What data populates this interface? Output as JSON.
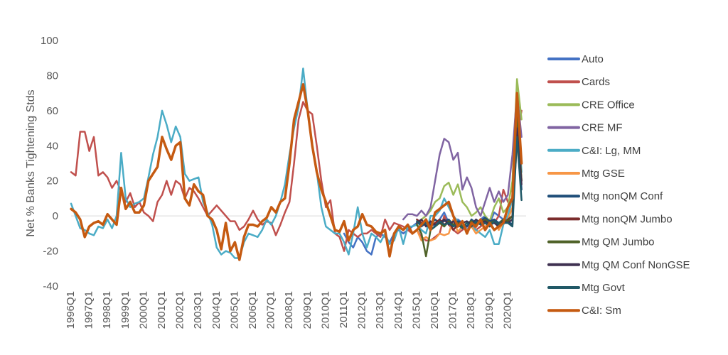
{
  "chart_data": {
    "type": "line",
    "title": "",
    "xlabel": "",
    "ylabel": "Net % Banks Tightening Stds",
    "ylim": [
      -40,
      100
    ],
    "yticks": [
      -40,
      -20,
      0,
      20,
      40,
      60,
      80,
      100
    ],
    "xlim": [
      1996.0,
      2021.0
    ],
    "xticks": [
      "1996Q1",
      "1997Q1",
      "1998Q1",
      "1999Q1",
      "2000Q1",
      "2001Q1",
      "2002Q1",
      "2003Q1",
      "2004Q1",
      "2005Q1",
      "2006Q1",
      "2007Q1",
      "2008Q1",
      "2009Q1",
      "2010Q1",
      "2011Q1",
      "2012Q1",
      "2013Q1",
      "2014Q1",
      "2015Q1",
      "2016Q1",
      "2017Q1",
      "2018Q1",
      "2019Q1",
      "2020Q1"
    ],
    "grid": false,
    "legend_position": "right",
    "series": [
      {
        "name": "Auto",
        "color": "#4472C4",
        "width": 2.5,
        "x": [
          2011.0,
          2011.25,
          2011.5,
          2011.75,
          2012.0,
          2012.25,
          2012.5,
          2012.75,
          2013.0,
          2013.25,
          2013.5,
          2013.75,
          2014.0,
          2014.25,
          2014.5,
          2014.75,
          2015.0,
          2015.25,
          2015.5,
          2015.75,
          2016.0,
          2016.25,
          2016.5,
          2016.75,
          2017.0,
          2017.25,
          2017.5,
          2017.75,
          2018.0,
          2018.25,
          2018.5,
          2018.75,
          2019.0,
          2019.25,
          2019.5,
          2019.75,
          2020.0,
          2020.25,
          2020.5,
          2020.75
        ],
        "y": [
          -10,
          -15,
          -18,
          -12,
          -15,
          -20,
          -22,
          -12,
          -10,
          -12,
          -15,
          -10,
          -8,
          -10,
          -8,
          -6,
          -4,
          -2,
          -6,
          -4,
          -6,
          -2,
          2,
          -4,
          -6,
          -2,
          -4,
          -8,
          -4,
          -6,
          -2,
          0,
          -4,
          2,
          0,
          -2,
          0,
          10,
          50,
          30
        ]
      },
      {
        "name": "Cards",
        "color": "#C0504D",
        "width": 2.5,
        "x": [
          1996.0,
          1996.25,
          1996.5,
          1996.75,
          1997.0,
          1997.25,
          1997.5,
          1997.75,
          1998.0,
          1998.25,
          1998.5,
          1998.75,
          1999.0,
          1999.25,
          1999.5,
          1999.75,
          2000.0,
          2000.25,
          2000.5,
          2000.75,
          2001.0,
          2001.25,
          2001.5,
          2001.75,
          2002.0,
          2002.25,
          2002.5,
          2002.75,
          2003.0,
          2003.25,
          2003.5,
          2003.75,
          2004.0,
          2004.25,
          2004.5,
          2004.75,
          2005.0,
          2005.25,
          2005.5,
          2005.75,
          2006.0,
          2006.25,
          2006.5,
          2006.75,
          2007.0,
          2007.25,
          2007.5,
          2007.75,
          2008.0,
          2008.25,
          2008.5,
          2008.75,
          2009.0,
          2009.25,
          2009.5,
          2009.75,
          2010.0,
          2010.25,
          2010.5,
          2010.75,
          2011.0,
          2011.25,
          2011.5,
          2011.75,
          2012.0,
          2012.25,
          2012.5,
          2012.75,
          2013.0,
          2013.25,
          2013.5,
          2013.75,
          2014.0,
          2014.25,
          2014.5,
          2014.75,
          2015.0,
          2015.25,
          2015.5,
          2015.75,
          2016.0,
          2016.25,
          2016.5,
          2016.75,
          2017.0,
          2017.25,
          2017.5,
          2017.75,
          2018.0,
          2018.25,
          2018.5,
          2018.75,
          2019.0,
          2019.25,
          2019.5,
          2019.75,
          2020.0,
          2020.25,
          2020.5,
          2020.75
        ],
        "y": [
          25,
          23,
          48,
          48,
          37,
          45,
          23,
          25,
          22,
          16,
          20,
          14,
          8,
          13,
          5,
          8,
          2,
          0,
          -3,
          8,
          12,
          20,
          12,
          20,
          18,
          10,
          16,
          14,
          10,
          5,
          0,
          3,
          6,
          3,
          0,
          -3,
          -3,
          -8,
          -6,
          -2,
          3,
          -2,
          -5,
          -3,
          -4,
          -11,
          -5,
          2,
          8,
          30,
          55,
          65,
          60,
          58,
          40,
          20,
          5,
          9,
          -10,
          -12,
          -20,
          -8,
          -10,
          -12,
          -10,
          -10,
          -8,
          -10,
          -12,
          -2,
          -8,
          -4,
          -5,
          -6,
          -8,
          -10,
          -8,
          -12,
          -14,
          -14,
          -12,
          -10,
          0,
          -5,
          -8,
          -10,
          -8,
          -6,
          -4,
          -8,
          -6,
          -4,
          -2,
          -4,
          0,
          15,
          8,
          10,
          45,
          60
        ]
      },
      {
        "name": "CRE Office",
        "color": "#9BBB59",
        "width": 2.5,
        "x": [
          2015.0,
          2015.25,
          2015.5,
          2015.75,
          2016.0,
          2016.25,
          2016.5,
          2016.75,
          2017.0,
          2017.25,
          2017.5,
          2017.75,
          2018.0,
          2018.25,
          2018.5,
          2018.75,
          2019.0,
          2019.25,
          2019.5,
          2019.75,
          2020.0,
          2020.25,
          2020.5,
          2020.75
        ],
        "y": [
          -5,
          -2,
          0,
          3,
          8,
          10,
          17,
          19,
          12,
          18,
          8,
          5,
          0,
          2,
          5,
          0,
          -3,
          5,
          10,
          2,
          5,
          20,
          78,
          55
        ]
      },
      {
        "name": "CRE MF",
        "color": "#8064A2",
        "width": 2.5,
        "x": [
          2014.25,
          2014.5,
          2014.75,
          2015.0,
          2015.25,
          2015.5,
          2015.75,
          2016.0,
          2016.25,
          2016.5,
          2016.75,
          2017.0,
          2017.25,
          2017.5,
          2017.75,
          2018.0,
          2018.25,
          2018.5,
          2018.75,
          2019.0,
          2019.25,
          2019.5,
          2019.75,
          2020.0,
          2020.25,
          2020.5,
          2020.75
        ],
        "y": [
          -2,
          1,
          1,
          0,
          3,
          0,
          5,
          20,
          35,
          44,
          42,
          32,
          36,
          15,
          22,
          16,
          5,
          0,
          8,
          16,
          8,
          14,
          8,
          12,
          35,
          70,
          45
        ]
      },
      {
        "name": "C&I: Lg, MM",
        "color": "#4BACC6",
        "width": 2.5,
        "x": [
          1996.0,
          1996.25,
          1996.5,
          1996.75,
          1997.0,
          1997.25,
          1997.5,
          1997.75,
          1998.0,
          1998.25,
          1998.5,
          1998.75,
          1999.0,
          1999.25,
          1999.5,
          1999.75,
          2000.0,
          2000.25,
          2000.5,
          2000.75,
          2001.0,
          2001.25,
          2001.5,
          2001.75,
          2002.0,
          2002.25,
          2002.5,
          2002.75,
          2003.0,
          2003.25,
          2003.5,
          2003.75,
          2004.0,
          2004.25,
          2004.5,
          2004.75,
          2005.0,
          2005.25,
          2005.5,
          2005.75,
          2006.0,
          2006.25,
          2006.5,
          2006.75,
          2007.0,
          2007.25,
          2007.5,
          2007.75,
          2008.0,
          2008.25,
          2008.5,
          2008.75,
          2009.0,
          2009.25,
          2009.5,
          2009.75,
          2010.0,
          2010.25,
          2010.5,
          2010.75,
          2011.0,
          2011.25,
          2011.5,
          2011.75,
          2012.0,
          2012.25,
          2012.5,
          2012.75,
          2013.0,
          2013.25,
          2013.5,
          2013.75,
          2014.0,
          2014.25,
          2014.5,
          2014.75,
          2015.0,
          2015.25,
          2015.5,
          2015.75,
          2016.0,
          2016.25,
          2016.5,
          2016.75,
          2017.0,
          2017.25,
          2017.5,
          2017.75,
          2018.0,
          2018.25,
          2018.5,
          2018.75,
          2019.0,
          2019.25,
          2019.5,
          2019.75,
          2020.0,
          2020.25,
          2020.5,
          2020.75
        ],
        "y": [
          7,
          0,
          -7,
          -8,
          -10,
          -11,
          -6,
          -7,
          -2,
          -7,
          0,
          36,
          10,
          5,
          7,
          8,
          10,
          22,
          35,
          45,
          60,
          52,
          42,
          51,
          45,
          24,
          20,
          21,
          22,
          8,
          2,
          -5,
          -18,
          -22,
          -20,
          -21,
          -24,
          -24,
          -15,
          -10,
          -11,
          -12,
          -8,
          -2,
          -5,
          0,
          8,
          18,
          35,
          50,
          62,
          84,
          60,
          40,
          25,
          5,
          -6,
          -8,
          -10,
          -10,
          -15,
          -22,
          -10,
          5,
          -10,
          -18,
          -10,
          -12,
          -15,
          -10,
          -16,
          -14,
          -6,
          -16,
          -6,
          -6,
          -5,
          -8,
          -10,
          0,
          0,
          3,
          10,
          5,
          0,
          -3,
          -5,
          -8,
          -6,
          -8,
          -10,
          -12,
          -8,
          -16,
          -16,
          -5,
          0,
          10,
          70,
          25
        ]
      },
      {
        "name": "Mtg GSE",
        "color": "#F79646",
        "width": 2.5,
        "x": [
          2015.0,
          2015.25,
          2015.5,
          2015.75,
          2016.0,
          2016.25,
          2016.5,
          2016.75,
          2017.0,
          2017.25,
          2017.5,
          2017.75,
          2018.0,
          2018.25,
          2018.5,
          2018.75,
          2019.0,
          2019.25,
          2019.5,
          2019.75,
          2020.0,
          2020.25,
          2020.5,
          2020.75
        ],
        "y": [
          -8,
          -14,
          -12,
          -14,
          -13,
          -10,
          -11,
          -10,
          -2,
          -9,
          -6,
          -8,
          -6,
          -10,
          -8,
          -6,
          -4,
          -2,
          -8,
          -4,
          -2,
          5,
          40,
          30
        ]
      },
      {
        "name": "Mtg nonQM Conf",
        "color": "#1F4E79",
        "width": 2.5,
        "x": [
          2015.0,
          2015.25,
          2015.5,
          2015.75,
          2016.0,
          2016.25,
          2016.5,
          2016.75,
          2017.0,
          2017.25,
          2017.5,
          2017.75,
          2018.0,
          2018.25,
          2018.5,
          2018.75,
          2019.0,
          2019.25,
          2019.5,
          2019.75,
          2020.0,
          2020.25,
          2020.5,
          2020.75
        ],
        "y": [
          -3,
          -6,
          -4,
          -5,
          -2,
          -4,
          -3,
          -2,
          -5,
          -3,
          -4,
          -6,
          -2,
          -4,
          -3,
          -1,
          -3,
          -2,
          -4,
          -2,
          -3,
          -5,
          55,
          15
        ]
      },
      {
        "name": "Mtg nonQM Jumbo",
        "color": "#7B2C2C",
        "width": 2.5,
        "x": [
          2015.0,
          2015.25,
          2015.5,
          2015.75,
          2016.0,
          2016.25,
          2016.5,
          2016.75,
          2017.0,
          2017.25,
          2017.5,
          2017.75,
          2018.0,
          2018.25,
          2018.5,
          2018.75,
          2019.0,
          2019.25,
          2019.5,
          2019.75,
          2020.0,
          2020.25,
          2020.5,
          2020.75
        ],
        "y": [
          -2,
          -4,
          -3,
          -6,
          -4,
          -2,
          -5,
          -3,
          -8,
          -5,
          -3,
          -10,
          -4,
          -6,
          -2,
          -4,
          -6,
          -3,
          -5,
          -4,
          -2,
          0,
          60,
          20
        ]
      },
      {
        "name": "Mtg QM Jumbo",
        "color": "#4F6228",
        "width": 2.5,
        "x": [
          2015.0,
          2015.25,
          2015.5,
          2015.75,
          2016.0,
          2016.25,
          2016.5,
          2016.75,
          2017.0,
          2017.25,
          2017.5,
          2017.75,
          2018.0,
          2018.25,
          2018.5,
          2018.75,
          2019.0,
          2019.25,
          2019.5,
          2019.75,
          2020.0,
          2020.25,
          2020.5,
          2020.75
        ],
        "y": [
          -5,
          -10,
          -23,
          -8,
          -6,
          -4,
          -6,
          -3,
          -5,
          -4,
          -6,
          -4,
          -3,
          -5,
          -4,
          -2,
          -4,
          -3,
          -5,
          -2,
          -3,
          0,
          55,
          20
        ]
      },
      {
        "name": "Mtg QM Conf NonGSE",
        "color": "#3F3151",
        "width": 2.5,
        "x": [
          2015.0,
          2015.25,
          2015.5,
          2015.75,
          2016.0,
          2016.25,
          2016.5,
          2016.75,
          2017.0,
          2017.25,
          2017.5,
          2017.75,
          2018.0,
          2018.25,
          2018.5,
          2018.75,
          2019.0,
          2019.25,
          2019.5,
          2019.75,
          2020.0,
          2020.25,
          2020.5,
          2020.75
        ],
        "y": [
          -4,
          -2,
          -6,
          -3,
          -5,
          -4,
          -2,
          -5,
          -3,
          -6,
          -4,
          -3,
          -5,
          -2,
          -4,
          -3,
          -5,
          -4,
          -6,
          -3,
          -4,
          -2,
          50,
          18
        ]
      },
      {
        "name": "Mtg Govt",
        "color": "#215967",
        "width": 2.5,
        "x": [
          2015.0,
          2015.25,
          2015.5,
          2015.75,
          2016.0,
          2016.25,
          2016.5,
          2016.75,
          2017.0,
          2017.25,
          2017.5,
          2017.75,
          2018.0,
          2018.25,
          2018.5,
          2018.75,
          2019.0,
          2019.25,
          2019.5,
          2019.75,
          2020.0,
          2020.25,
          2020.5,
          2020.75
        ],
        "y": [
          -3,
          -5,
          -4,
          -8,
          -6,
          -3,
          -5,
          -4,
          -6,
          -5,
          -7,
          -4,
          -6,
          -3,
          -5,
          -4,
          -6,
          -3,
          -5,
          -4,
          -4,
          -6,
          45,
          9
        ]
      },
      {
        "name": "C&I: Sm",
        "color": "#C55A11",
        "width": 3.5,
        "x": [
          1996.0,
          1996.25,
          1996.5,
          1996.75,
          1997.0,
          1997.25,
          1997.5,
          1997.75,
          1998.0,
          1998.25,
          1998.5,
          1998.75,
          1999.0,
          1999.25,
          1999.5,
          1999.75,
          2000.0,
          2000.25,
          2000.5,
          2000.75,
          2001.0,
          2001.25,
          2001.5,
          2001.75,
          2002.0,
          2002.25,
          2002.5,
          2002.75,
          2003.0,
          2003.25,
          2003.5,
          2003.75,
          2004.0,
          2004.25,
          2004.5,
          2004.75,
          2005.0,
          2005.25,
          2005.5,
          2005.75,
          2006.0,
          2006.25,
          2006.5,
          2006.75,
          2007.0,
          2007.25,
          2007.5,
          2007.75,
          2008.0,
          2008.25,
          2008.5,
          2008.75,
          2009.0,
          2009.25,
          2009.5,
          2009.75,
          2010.0,
          2010.25,
          2010.5,
          2010.75,
          2011.0,
          2011.25,
          2011.5,
          2011.75,
          2012.0,
          2012.25,
          2012.5,
          2012.75,
          2013.0,
          2013.25,
          2013.5,
          2013.75,
          2014.0,
          2014.25,
          2014.5,
          2014.75,
          2015.0,
          2015.25,
          2015.5,
          2015.75,
          2016.0,
          2016.25,
          2016.5,
          2016.75,
          2017.0,
          2017.25,
          2017.5,
          2017.75,
          2018.0,
          2018.25,
          2018.5,
          2018.75,
          2019.0,
          2019.25,
          2019.5,
          2019.75,
          2020.0,
          2020.25,
          2020.5,
          2020.75
        ],
        "y": [
          4,
          2,
          -2,
          -12,
          -6,
          -4,
          -3,
          -5,
          1,
          -2,
          -5,
          16,
          4,
          8,
          2,
          2,
          6,
          20,
          24,
          28,
          45,
          38,
          32,
          40,
          42,
          10,
          6,
          18,
          14,
          12,
          0,
          -2,
          -8,
          -19,
          -4,
          -20,
          -15,
          -25,
          -12,
          -5,
          -5,
          -6,
          -3,
          -1,
          5,
          2,
          8,
          10,
          30,
          55,
          65,
          75,
          60,
          40,
          25,
          15,
          8,
          0,
          -8,
          -9,
          -3,
          -14,
          -8,
          -6,
          1,
          -5,
          -6,
          -9,
          -10,
          -8,
          -23,
          -10,
          -6,
          -8,
          -5,
          -10,
          -8,
          -5,
          -2,
          -8,
          2,
          4,
          6,
          8,
          0,
          -6,
          -3,
          -10,
          -4,
          -6,
          -2,
          -8,
          -4,
          -8,
          -6,
          -4,
          5,
          10,
          70,
          30
        ]
      }
    ]
  }
}
